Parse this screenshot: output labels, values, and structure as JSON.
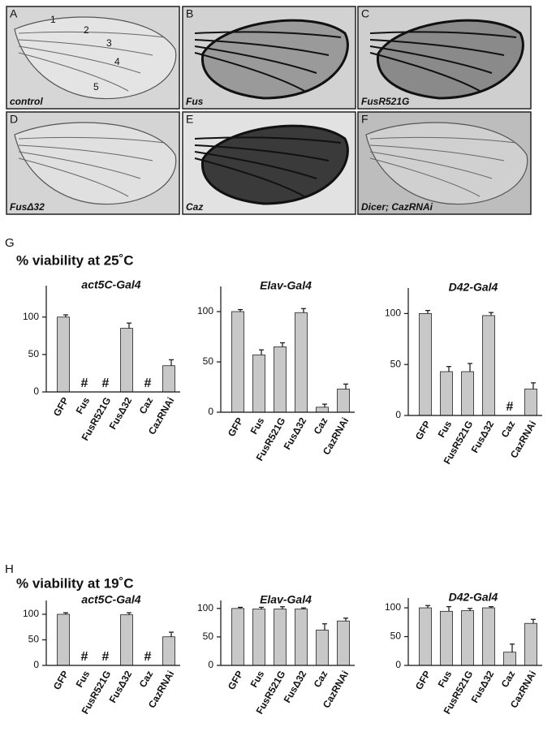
{
  "panels": [
    {
      "letter": "A",
      "label": "control",
      "veins": [
        "1",
        "2",
        "3",
        "4",
        "5"
      ]
    },
    {
      "letter": "B",
      "label": "Fus"
    },
    {
      "letter": "C",
      "label": "FusR521G"
    },
    {
      "letter": "D",
      "label": "FusΔ32"
    },
    {
      "letter": "E",
      "label": "Caz"
    },
    {
      "letter": "F",
      "label": "Dicer; CazRNAi"
    }
  ],
  "sections": [
    {
      "letter": "G",
      "title": "% viability at 25˚C"
    },
    {
      "letter": "H",
      "title": "% viability at 19˚C"
    }
  ],
  "chart_data": [
    {
      "type": "bar",
      "title": "act5C-Gal4",
      "categories": [
        "GFP",
        "Fus",
        "FusR521G",
        "FusΔ32",
        "Caz",
        "CazRNAi"
      ],
      "values": [
        100,
        0,
        0,
        85,
        0,
        35
      ],
      "errors": [
        3,
        0,
        0,
        7,
        0,
        8
      ],
      "markers": [
        null,
        "#",
        "#",
        null,
        "#",
        null
      ],
      "color": "#c8c8c8",
      "ylim": [
        0,
        142
      ],
      "yticks": [
        0,
        50,
        100
      ]
    },
    {
      "type": "bar",
      "title": "Elav-Gal4",
      "categories": [
        "GFP",
        "Fus",
        "FusR521G",
        "FusΔ32",
        "Caz",
        "CazRNAi"
      ],
      "values": [
        100,
        57,
        65,
        99,
        5,
        23
      ],
      "errors": [
        2,
        5,
        4,
        4,
        3,
        5
      ],
      "markers": [
        null,
        null,
        null,
        null,
        null,
        null
      ],
      "color": "#c8c8c8",
      "ylim": [
        0,
        125
      ],
      "yticks": [
        0,
        50,
        100
      ]
    },
    {
      "type": "bar",
      "title": "D42-Gal4",
      "categories": [
        "GFP",
        "Fus",
        "FusR521G",
        "FusΔ32",
        "Caz",
        "CazRNAi"
      ],
      "values": [
        100,
        43,
        43,
        98,
        0,
        26
      ],
      "errors": [
        3,
        5,
        8,
        3,
        0,
        6
      ],
      "markers": [
        null,
        null,
        null,
        null,
        "#",
        null
      ],
      "color": "#c8c8c8",
      "ylim": [
        0,
        125
      ],
      "yticks": [
        0,
        50,
        100
      ]
    },
    {
      "type": "bar",
      "title": "act5C-Gal4",
      "categories": [
        "GFP",
        "Fus",
        "FusR521G",
        "FusΔ32",
        "Caz",
        "CazRNAi"
      ],
      "values": [
        100,
        0,
        0,
        99,
        0,
        56
      ],
      "errors": [
        3,
        0,
        0,
        4,
        0,
        9
      ],
      "markers": [
        null,
        "#",
        "#",
        null,
        "#",
        null
      ],
      "color": "#c8c8c8",
      "ylim": [
        0,
        127
      ],
      "yticks": [
        0,
        50,
        100
      ]
    },
    {
      "type": "bar",
      "title": "Elav-Gal4",
      "categories": [
        "GFP",
        "Fus",
        "FusR521G",
        "FusΔ32",
        "Caz",
        "CazRNAi"
      ],
      "values": [
        100,
        99,
        99,
        99,
        62,
        78
      ],
      "errors": [
        2,
        3,
        4,
        2,
        11,
        5
      ],
      "markers": [
        null,
        null,
        null,
        null,
        null,
        null
      ],
      "color": "#c8c8c8",
      "ylim": [
        0,
        114
      ],
      "yticks": [
        0,
        50,
        100
      ]
    },
    {
      "type": "bar",
      "title": "D42-Gal4",
      "categories": [
        "GFP",
        "Fus",
        "FusR521G",
        "FusΔ32",
        "Caz",
        "CazRNAi"
      ],
      "values": [
        100,
        94,
        95,
        100,
        23,
        73
      ],
      "errors": [
        4,
        8,
        4,
        2,
        14,
        7
      ],
      "markers": [
        null,
        null,
        null,
        null,
        null,
        null
      ],
      "color": "#c8c8c8",
      "ylim": [
        0,
        117
      ],
      "yticks": [
        0,
        50,
        100
      ]
    }
  ]
}
